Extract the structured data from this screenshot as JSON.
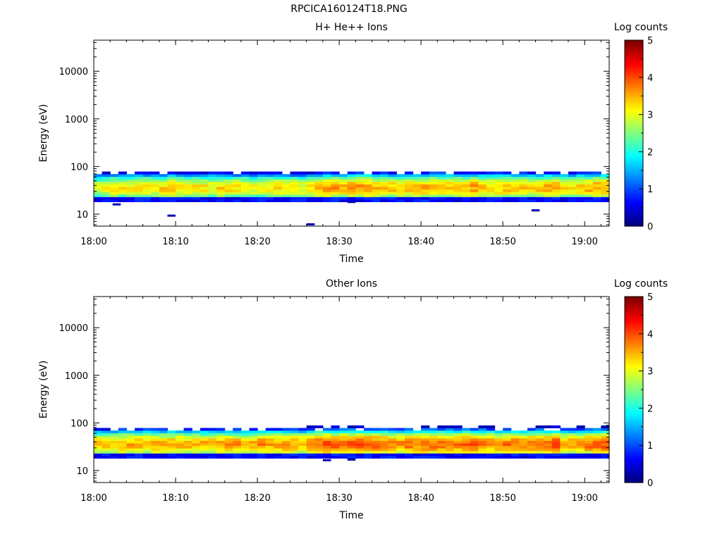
{
  "page": {
    "title": "RPCICA160124T18.PNG"
  },
  "chart_data": [
    {
      "type": "heatmap",
      "title": "H+ He++ Ions",
      "xlabel": "Time",
      "ylabel": "Energy (eV)",
      "x_ticks": [
        "18:00",
        "18:10",
        "18:20",
        "18:30",
        "18:40",
        "18:50",
        "19:00"
      ],
      "y_ticks": [
        "10",
        "100",
        "1000",
        "10000"
      ],
      "yscale": "log",
      "ylim": [
        5.6,
        45000
      ],
      "xlim_minutes": [
        0,
        63
      ],
      "colorbar": {
        "label": "Log counts",
        "ticks": [
          "0",
          "1",
          "2",
          "3",
          "4",
          "5"
        ],
        "range": [
          0,
          5
        ],
        "colormap": "jet"
      },
      "time_bins": 63,
      "energy_band_ev": {
        "lower": [
          20,
          25
        ],
        "core": [
          28,
          45
        ],
        "upper": [
          80,
          95
        ]
      },
      "core_log_counts": [
        3.0,
        3.1,
        3.2,
        3.2,
        3.2,
        3.3,
        3.3,
        3.2,
        3.3,
        3.4,
        3.3,
        3.3,
        3.2,
        3.2,
        3.2,
        3.3,
        3.3,
        3.2,
        3.2,
        3.1,
        3.1,
        3.2,
        3.3,
        3.3,
        3.2,
        3.1,
        3.2,
        3.4,
        3.6,
        3.6,
        3.5,
        3.6,
        3.7,
        3.6,
        3.5,
        3.5,
        3.4,
        3.4,
        3.4,
        3.5,
        3.5,
        3.6,
        3.5,
        3.4,
        3.5,
        3.5,
        3.6,
        3.5,
        3.4,
        3.4,
        3.4,
        3.5,
        3.4,
        3.4,
        3.4,
        3.5,
        3.6,
        3.3,
        3.3,
        3.4,
        3.5,
        3.6,
        3.6
      ]
    },
    {
      "type": "heatmap",
      "title": "Other Ions",
      "xlabel": "Time",
      "ylabel": "Energy (eV)",
      "x_ticks": [
        "18:00",
        "18:10",
        "18:20",
        "18:30",
        "18:40",
        "18:50",
        "19:00"
      ],
      "y_ticks": [
        "10",
        "100",
        "1000",
        "10000"
      ],
      "yscale": "log",
      "ylim": [
        5.6,
        45000
      ],
      "xlim_minutes": [
        0,
        63
      ],
      "colorbar": {
        "label": "Log counts",
        "ticks": [
          "0",
          "1",
          "2",
          "3",
          "4",
          "5"
        ],
        "range": [
          0,
          5
        ],
        "colormap": "jet"
      },
      "time_bins": 63,
      "energy_band_ev": {
        "lower": [
          20,
          25
        ],
        "core": [
          28,
          45
        ],
        "upper": [
          80,
          95
        ]
      },
      "core_log_counts": [
        3.3,
        3.4,
        3.4,
        3.5,
        3.5,
        3.5,
        3.5,
        3.6,
        3.5,
        3.5,
        3.5,
        3.5,
        3.4,
        3.5,
        3.5,
        3.6,
        3.6,
        3.6,
        3.5,
        3.5,
        3.7,
        3.6,
        3.6,
        3.7,
        3.6,
        3.5,
        3.7,
        3.9,
        4.0,
        3.9,
        3.9,
        3.9,
        4.0,
        3.9,
        3.9,
        3.8,
        3.7,
        3.7,
        3.8,
        3.8,
        3.9,
        3.9,
        3.8,
        3.8,
        3.8,
        3.9,
        3.9,
        3.8,
        3.7,
        3.7,
        3.8,
        3.8,
        3.8,
        3.8,
        3.8,
        3.9,
        4.0,
        3.6,
        3.6,
        3.7,
        3.8,
        3.9,
        4.0
      ]
    }
  ]
}
